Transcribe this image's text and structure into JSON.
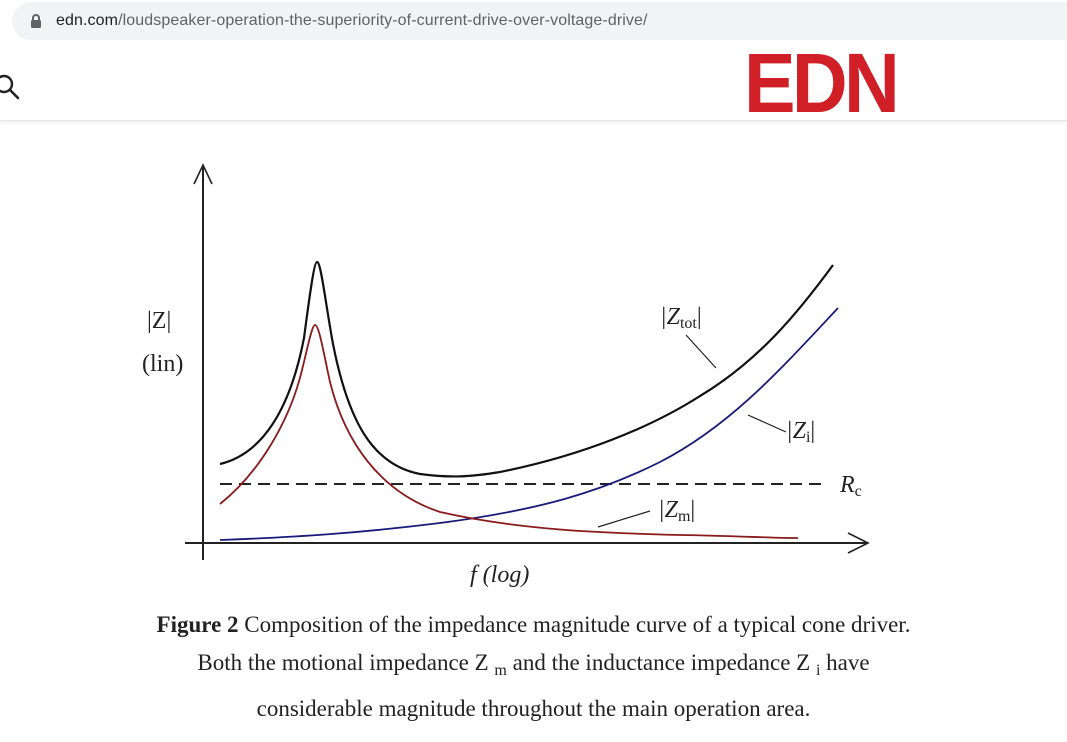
{
  "browser": {
    "url_host": "edn.com",
    "url_path": "/loudspeaker-operation-the-superiority-of-current-drive-over-voltage-drive/"
  },
  "header": {
    "logo_text": "EDN",
    "brand_color": "#d01f26",
    "search_icon": "search-icon"
  },
  "figure": {
    "y_label_1": "|Z|",
    "y_label_2": "(lin)",
    "x_label": "f (log)",
    "labels": {
      "ztot": "|Z",
      "ztot_sub": "tot",
      "zi": "|Z",
      "zi_sub": "i",
      "rc": "R",
      "rc_sub": "c",
      "zm": "|Z",
      "zm_sub": "m"
    },
    "colors": {
      "ztot": "#111111",
      "zm": "#8b1a1a",
      "zi": "#1a1a7a"
    }
  },
  "caption": {
    "figure_label": "Figure 2",
    "line1_rest": " Composition of the impedance magnitude curve of a typical cone driver.",
    "line2_a": "Both the motional impedance Z ",
    "line2_sub_m": "m",
    "line2_b": " and the inductance impedance Z ",
    "line2_sub_i": "i",
    "line2_c": " have",
    "line3": "considerable magnitude throughout the main operation area."
  }
}
